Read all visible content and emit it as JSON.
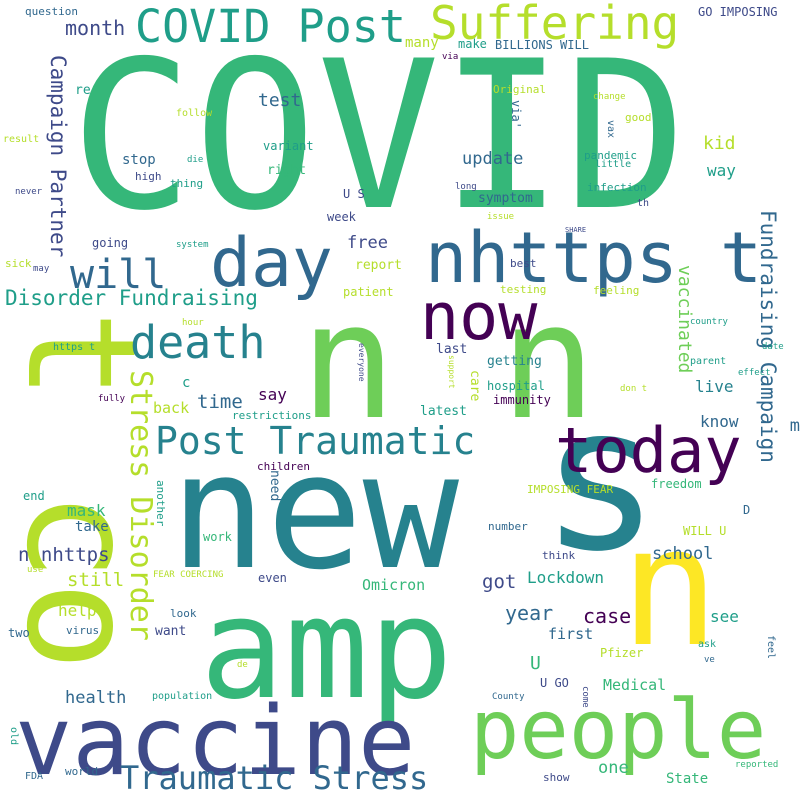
{
  "palette": {
    "background": "#ffffff",
    "purple": "#440154",
    "indigo": "#3e4a89",
    "blue": "#31688e",
    "teal": "#26828e",
    "sea": "#1f9e89",
    "jade": "#35b779",
    "green": "#6ece58",
    "lime": "#b5de2b",
    "yellow": "#fde725"
  },
  "words": [
    {
      "text": "COVID"
    },
    {
      "text": "n"
    },
    {
      "text": "n"
    },
    {
      "text": "new"
    },
    {
      "text": "s"
    },
    {
      "text": "amp"
    },
    {
      "text": "t co"
    },
    {
      "text": "n"
    },
    {
      "text": "vaccine"
    },
    {
      "text": "people"
    },
    {
      "text": "nhttps t"
    },
    {
      "text": "today"
    },
    {
      "text": "now"
    },
    {
      "text": "day"
    },
    {
      "text": "COVID Post"
    },
    {
      "text": "Suffering"
    },
    {
      "text": "will"
    },
    {
      "text": "death"
    },
    {
      "text": "Post Traumatic"
    },
    {
      "text": "Traumatic Stress"
    },
    {
      "text": "Stress Disorder"
    },
    {
      "text": "Disorder Fundraising"
    },
    {
      "text": "Fundraising Campaign"
    },
    {
      "text": "Campaign Partner"
    },
    {
      "text": "month"
    },
    {
      "text": "test"
    },
    {
      "text": "many"
    },
    {
      "text": "make"
    },
    {
      "text": "BILLIONS WILL"
    },
    {
      "text": "GO IMPOSING"
    },
    {
      "text": "question"
    },
    {
      "text": "re"
    },
    {
      "text": "via"
    },
    {
      "text": "Original"
    },
    {
      "text": "via'"
    },
    {
      "text": "vax"
    },
    {
      "text": "good"
    },
    {
      "text": "change"
    },
    {
      "text": "follow"
    },
    {
      "text": "result"
    },
    {
      "text": "kid"
    },
    {
      "text": "pandemic"
    },
    {
      "text": "little"
    },
    {
      "text": "way"
    },
    {
      "text": "infection"
    },
    {
      "text": "th"
    },
    {
      "text": "variant"
    },
    {
      "text": "stop"
    },
    {
      "text": "die"
    },
    {
      "text": "right"
    },
    {
      "text": "high"
    },
    {
      "text": "thing"
    },
    {
      "text": "update"
    },
    {
      "text": "symptom"
    },
    {
      "text": "long"
    },
    {
      "text": "never"
    },
    {
      "text": "U S"
    },
    {
      "text": "issue"
    },
    {
      "text": "week"
    },
    {
      "text": "SHARE"
    },
    {
      "text": "system"
    },
    {
      "text": "free"
    },
    {
      "text": "going"
    },
    {
      "text": "report"
    },
    {
      "text": "best"
    },
    {
      "text": "sick"
    },
    {
      "text": "may"
    },
    {
      "text": "testing"
    },
    {
      "text": "feeling"
    },
    {
      "text": "patient"
    },
    {
      "text": "vaccinated"
    },
    {
      "text": "country"
    },
    {
      "text": "hour"
    },
    {
      "text": "date"
    },
    {
      "text": "https t"
    },
    {
      "text": "last"
    },
    {
      "text": "everyone"
    },
    {
      "text": "parent"
    },
    {
      "text": "getting"
    },
    {
      "text": "support"
    },
    {
      "text": "c"
    },
    {
      "text": "live"
    },
    {
      "text": "effect"
    },
    {
      "text": "say"
    },
    {
      "text": "care"
    },
    {
      "text": "hospital"
    },
    {
      "text": "don t"
    },
    {
      "text": "time"
    },
    {
      "text": "immunity"
    },
    {
      "text": "fully"
    },
    {
      "text": "back"
    },
    {
      "text": "restrictions"
    },
    {
      "text": "latest"
    },
    {
      "text": "know"
    },
    {
      "text": "m"
    },
    {
      "text": "children"
    },
    {
      "text": "end"
    },
    {
      "text": "IMPOSING FEAR"
    },
    {
      "text": "freedom"
    },
    {
      "text": "need"
    },
    {
      "text": "mask"
    },
    {
      "text": "another"
    },
    {
      "text": "take"
    },
    {
      "text": "D"
    },
    {
      "text": "WILL U"
    },
    {
      "text": "number"
    },
    {
      "text": "work"
    },
    {
      "text": "n nhttps"
    },
    {
      "text": "school"
    },
    {
      "text": "think"
    },
    {
      "text": "use"
    },
    {
      "text": "FEAR COERCING"
    },
    {
      "text": "even"
    },
    {
      "text": "still"
    },
    {
      "text": "got"
    },
    {
      "text": "Lockdown"
    },
    {
      "text": "Omicron"
    },
    {
      "text": "year"
    },
    {
      "text": "case"
    },
    {
      "text": "see"
    },
    {
      "text": "help"
    },
    {
      "text": "look"
    },
    {
      "text": "first"
    },
    {
      "text": "two"
    },
    {
      "text": "virus"
    },
    {
      "text": "want"
    },
    {
      "text": "ask"
    },
    {
      "text": "feel"
    },
    {
      "text": "Pfizer"
    },
    {
      "text": "U"
    },
    {
      "text": "ve"
    },
    {
      "text": "de"
    },
    {
      "text": "U GO"
    },
    {
      "text": "Medical"
    },
    {
      "text": "health"
    },
    {
      "text": "population"
    },
    {
      "text": "County"
    },
    {
      "text": "come"
    },
    {
      "text": "old"
    },
    {
      "text": "FDA"
    },
    {
      "text": "world"
    },
    {
      "text": "one"
    },
    {
      "text": "show"
    },
    {
      "text": "State"
    },
    {
      "text": "reported"
    }
  ]
}
